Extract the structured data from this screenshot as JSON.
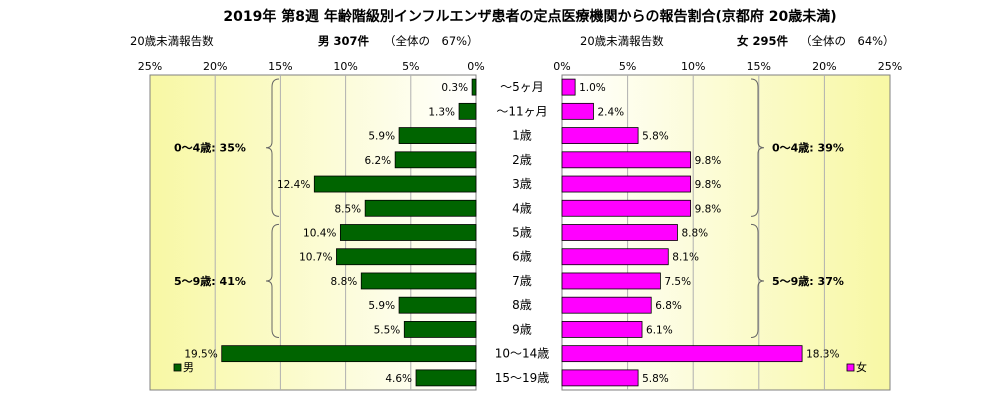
{
  "chart_data": {
    "type": "bar",
    "title": "2019年 第8週 年齢階級別インフルエンザ患者の定点医療機関からの報告割合(京都府 20歳未満)",
    "categories": [
      "～5ヶ月",
      "～11ヶ月",
      "1歳",
      "2歳",
      "3歳",
      "4歳",
      "5歳",
      "6歳",
      "7歳",
      "8歳",
      "9歳",
      "10～14歳",
      "15～19歳"
    ],
    "value_labels": {
      "male": [
        "0.3%",
        "1.3%",
        "5.9%",
        "6.2%",
        "12.4%",
        "8.5%",
        "10.4%",
        "10.7%",
        "8.8%",
        "5.9%",
        "5.5%",
        "19.5%",
        "4.6%"
      ],
      "female": [
        "1.0%",
        "2.4%",
        "5.8%",
        "9.8%",
        "9.8%",
        "9.8%",
        "8.8%",
        "8.1%",
        "7.5%",
        "6.8%",
        "6.1%",
        "18.3%",
        "5.8%"
      ]
    },
    "series": [
      {
        "name": "男",
        "color": "#006400",
        "values": [
          0.3,
          1.3,
          5.9,
          6.2,
          12.4,
          8.5,
          10.4,
          10.7,
          8.8,
          5.9,
          5.5,
          19.5,
          4.6
        ]
      },
      {
        "name": "女",
        "color": "#ff00ff",
        "values": [
          1.0,
          2.4,
          5.8,
          9.8,
          9.8,
          9.8,
          8.8,
          8.1,
          7.5,
          6.8,
          6.1,
          18.3,
          5.8
        ]
      }
    ],
    "left_panel": {
      "subtitle_left": "20歳未満報告数",
      "subtitle_main": "男 307件",
      "subtitle_note": "（全体の　67%）",
      "ticks": [
        "25%",
        "20%",
        "15%",
        "10%",
        "5%",
        "0%"
      ],
      "groups": [
        {
          "label": "0～4歳: 35%",
          "start": 0,
          "end": 5
        },
        {
          "label": "5～9歳: 41%",
          "start": 6,
          "end": 10
        }
      ],
      "legend": "男"
    },
    "right_panel": {
      "subtitle_left": "20歳未満報告数",
      "subtitle_main": "女 295件",
      "subtitle_note": "（全体の　64%）",
      "ticks": [
        "0%",
        "5%",
        "10%",
        "15%",
        "20%",
        "25%"
      ],
      "groups": [
        {
          "label": "0～4歳: 39%",
          "start": 0,
          "end": 5
        },
        {
          "label": "5～9歳: 37%",
          "start": 6,
          "end": 10
        }
      ],
      "legend": "女"
    },
    "xlim": [
      0,
      25
    ],
    "grid": true,
    "legend_placement": "bottom-left / bottom-right"
  }
}
